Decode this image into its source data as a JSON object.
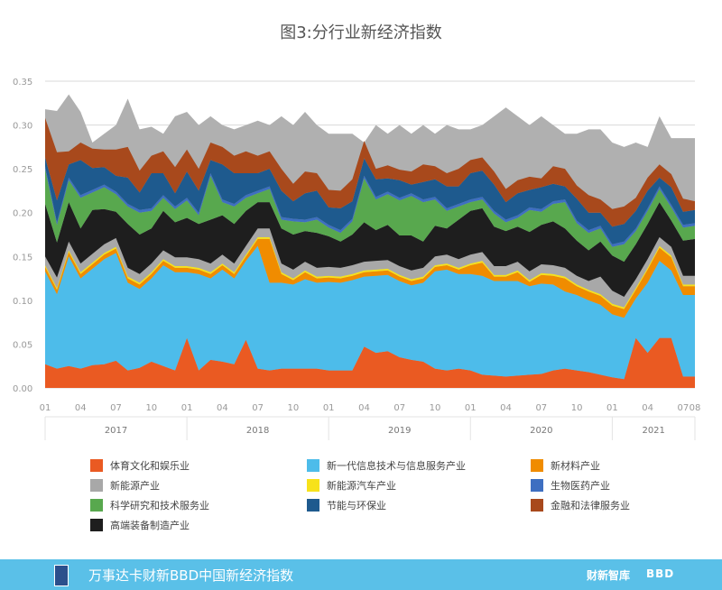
{
  "chart_data": {
    "type": "area",
    "stacked": true,
    "title": "图3:分行业新经济指数",
    "xlabel": "",
    "ylabel": "",
    "ylim": [
      0,
      0.35
    ],
    "yticks": [
      "0.00",
      "0.05",
      "0.10",
      "0.15",
      "0.20",
      "0.25",
      "0.30",
      "0.35"
    ],
    "x_month_labels": [
      "01",
      "04",
      "07",
      "10",
      "01",
      "04",
      "07",
      "10",
      "01",
      "04",
      "07",
      "10",
      "01",
      "04",
      "07",
      "10",
      "01",
      "04",
      "07",
      "08"
    ],
    "x_year_labels": [
      "2017",
      "2018",
      "2019",
      "2020",
      "2021"
    ],
    "grid": true,
    "legend_position": "bottom",
    "x": [
      "2017-01",
      "2017-02",
      "2017-03",
      "2017-04",
      "2017-05",
      "2017-06",
      "2017-07",
      "2017-08",
      "2017-09",
      "2017-10",
      "2017-11",
      "2017-12",
      "2018-01",
      "2018-02",
      "2018-03",
      "2018-04",
      "2018-05",
      "2018-06",
      "2018-07",
      "2018-08",
      "2018-09",
      "2018-10",
      "2018-11",
      "2018-12",
      "2019-01",
      "2019-02",
      "2019-03",
      "2019-04",
      "2019-05",
      "2019-06",
      "2019-07",
      "2019-08",
      "2019-09",
      "2019-10",
      "2019-11",
      "2019-12",
      "2020-01",
      "2020-02",
      "2020-03",
      "2020-04",
      "2020-05",
      "2020-06",
      "2020-07",
      "2020-08",
      "2020-09",
      "2020-10",
      "2020-11",
      "2020-12",
      "2021-01",
      "2021-02",
      "2021-03",
      "2021-04",
      "2021-05",
      "2021-06",
      "2021-07",
      "2021-08"
    ],
    "series": [
      {
        "name": "体育文化和娱乐业",
        "color": "#ea5a22",
        "values": [
          0.027,
          0.022,
          0.025,
          0.022,
          0.026,
          0.027,
          0.031,
          0.02,
          0.023,
          0.03,
          0.025,
          0.02,
          0.057,
          0.02,
          0.032,
          0.03,
          0.027,
          0.055,
          0.022,
          0.02,
          0.022,
          0.022,
          0.022,
          0.022,
          0.02,
          0.02,
          0.02,
          0.047,
          0.04,
          0.042,
          0.035,
          0.032,
          0.03,
          0.022,
          0.02,
          0.022,
          0.02,
          0.015,
          0.014,
          0.013,
          0.014,
          0.015,
          0.016,
          0.02,
          0.022,
          0.02,
          0.018,
          0.015,
          0.012,
          0.01,
          0.057,
          0.04,
          0.057,
          0.057,
          0.013,
          0.013
        ]
      },
      {
        "name": "新一代信息技术与信息服务产业",
        "color": "#4dbcea",
        "values": [
          0.106,
          0.085,
          0.125,
          0.103,
          0.11,
          0.12,
          0.123,
          0.1,
          0.09,
          0.095,
          0.115,
          0.112,
          0.075,
          0.11,
          0.093,
          0.105,
          0.098,
          0.09,
          0.14,
          0.1,
          0.098,
          0.096,
          0.102,
          0.098,
          0.101,
          0.1,
          0.103,
          0.08,
          0.088,
          0.087,
          0.087,
          0.085,
          0.09,
          0.111,
          0.115,
          0.108,
          0.11,
          0.113,
          0.108,
          0.109,
          0.108,
          0.101,
          0.103,
          0.098,
          0.088,
          0.086,
          0.082,
          0.08,
          0.072,
          0.07,
          0.045,
          0.08,
          0.088,
          0.077,
          0.093,
          0.093
        ]
      },
      {
        "name": "新材料产业",
        "color": "#f08c00",
        "values": [
          0.005,
          0.005,
          0.005,
          0.005,
          0.005,
          0.005,
          0.005,
          0.005,
          0.005,
          0.005,
          0.005,
          0.005,
          0.005,
          0.005,
          0.005,
          0.005,
          0.005,
          0.005,
          0.008,
          0.05,
          0.01,
          0.005,
          0.008,
          0.005,
          0.005,
          0.005,
          0.005,
          0.005,
          0.005,
          0.005,
          0.005,
          0.005,
          0.005,
          0.005,
          0.005,
          0.005,
          0.01,
          0.015,
          0.005,
          0.005,
          0.01,
          0.005,
          0.01,
          0.01,
          0.015,
          0.01,
          0.01,
          0.01,
          0.01,
          0.01,
          0.01,
          0.015,
          0.015,
          0.015,
          0.01,
          0.01
        ]
      },
      {
        "name": "新能源汽车产业",
        "color": "#f7e21b",
        "values": [
          0.002,
          0.002,
          0.002,
          0.002,
          0.002,
          0.002,
          0.002,
          0.002,
          0.002,
          0.002,
          0.002,
          0.002,
          0.002,
          0.002,
          0.002,
          0.002,
          0.002,
          0.002,
          0.002,
          0.002,
          0.002,
          0.002,
          0.002,
          0.002,
          0.002,
          0.002,
          0.002,
          0.002,
          0.002,
          0.002,
          0.002,
          0.002,
          0.002,
          0.002,
          0.002,
          0.002,
          0.002,
          0.002,
          0.002,
          0.002,
          0.002,
          0.002,
          0.002,
          0.002,
          0.002,
          0.002,
          0.002,
          0.002,
          0.002,
          0.002,
          0.002,
          0.002,
          0.002,
          0.002,
          0.002,
          0.002
        ]
      },
      {
        "name": "新能源产业",
        "color": "#a8a8a8",
        "values": [
          0.01,
          0.012,
          0.01,
          0.01,
          0.01,
          0.01,
          0.01,
          0.01,
          0.01,
          0.01,
          0.01,
          0.01,
          0.01,
          0.01,
          0.01,
          0.01,
          0.01,
          0.01,
          0.01,
          0.01,
          0.01,
          0.01,
          0.01,
          0.01,
          0.01,
          0.01,
          0.01,
          0.01,
          0.01,
          0.01,
          0.01,
          0.01,
          0.01,
          0.01,
          0.01,
          0.01,
          0.01,
          0.01,
          0.01,
          0.01,
          0.01,
          0.01,
          0.01,
          0.01,
          0.01,
          0.01,
          0.01,
          0.02,
          0.015,
          0.012,
          0.01,
          0.01,
          0.01,
          0.01,
          0.01,
          0.01
        ]
      },
      {
        "name": "高端装备制造产业",
        "color": "#1e1e1e",
        "values": [
          0.06,
          0.04,
          0.045,
          0.04,
          0.05,
          0.04,
          0.03,
          0.05,
          0.045,
          0.04,
          0.045,
          0.04,
          0.045,
          0.04,
          0.05,
          0.045,
          0.045,
          0.04,
          0.03,
          0.03,
          0.04,
          0.04,
          0.035,
          0.04,
          0.035,
          0.03,
          0.035,
          0.045,
          0.035,
          0.04,
          0.035,
          0.04,
          0.03,
          0.035,
          0.03,
          0.045,
          0.05,
          0.05,
          0.045,
          0.04,
          0.04,
          0.045,
          0.045,
          0.05,
          0.045,
          0.04,
          0.035,
          0.04,
          0.04,
          0.04,
          0.04,
          0.04,
          0.04,
          0.03,
          0.04,
          0.042
        ]
      },
      {
        "name": "科学研究和技术服务业",
        "color": "#58a84e",
        "values": [
          0.04,
          0.02,
          0.025,
          0.035,
          0.02,
          0.025,
          0.02,
          0.02,
          0.025,
          0.02,
          0.015,
          0.015,
          0.02,
          0.01,
          0.05,
          0.015,
          0.02,
          0.015,
          0.01,
          0.015,
          0.01,
          0.015,
          0.01,
          0.015,
          0.01,
          0.01,
          0.015,
          0.05,
          0.035,
          0.035,
          0.04,
          0.045,
          0.045,
          0.03,
          0.02,
          0.015,
          0.01,
          0.01,
          0.015,
          0.01,
          0.01,
          0.025,
          0.015,
          0.02,
          0.03,
          0.02,
          0.02,
          0.015,
          0.01,
          0.02,
          0.015,
          0.015,
          0.015,
          0.015,
          0.015,
          0.015
        ]
      },
      {
        "name": "生物医药产业",
        "color": "#3e6fc1",
        "values": [
          0.003,
          0.003,
          0.003,
          0.003,
          0.003,
          0.003,
          0.003,
          0.003,
          0.003,
          0.003,
          0.003,
          0.003,
          0.003,
          0.003,
          0.003,
          0.003,
          0.003,
          0.003,
          0.003,
          0.003,
          0.003,
          0.003,
          0.003,
          0.003,
          0.003,
          0.003,
          0.003,
          0.003,
          0.003,
          0.003,
          0.003,
          0.003,
          0.003,
          0.003,
          0.003,
          0.003,
          0.003,
          0.003,
          0.003,
          0.003,
          0.003,
          0.003,
          0.003,
          0.003,
          0.003,
          0.003,
          0.003,
          0.003,
          0.003,
          0.003,
          0.003,
          0.003,
          0.003,
          0.003,
          0.003,
          0.003
        ]
      },
      {
        "name": "节能与环保业",
        "color": "#1e5a8e",
        "values": [
          0.01,
          0.025,
          0.015,
          0.04,
          0.025,
          0.02,
          0.018,
          0.03,
          0.02,
          0.04,
          0.025,
          0.015,
          0.03,
          0.025,
          0.015,
          0.04,
          0.035,
          0.025,
          0.02,
          0.02,
          0.03,
          0.02,
          0.03,
          0.03,
          0.02,
          0.025,
          0.02,
          0.02,
          0.02,
          0.015,
          0.02,
          0.01,
          0.02,
          0.02,
          0.025,
          0.02,
          0.03,
          0.03,
          0.03,
          0.02,
          0.025,
          0.02,
          0.025,
          0.02,
          0.015,
          0.025,
          0.02,
          0.015,
          0.02,
          0.02,
          0.02,
          0.02,
          0.01,
          0.02,
          0.015,
          0.015
        ]
      },
      {
        "name": "金融和法律服务业",
        "color": "#a8491c",
        "values": [
          0.045,
          0.055,
          0.015,
          0.02,
          0.022,
          0.02,
          0.03,
          0.035,
          0.025,
          0.02,
          0.025,
          0.03,
          0.025,
          0.025,
          0.02,
          0.02,
          0.02,
          0.025,
          0.02,
          0.02,
          0.025,
          0.02,
          0.025,
          0.02,
          0.02,
          0.02,
          0.025,
          0.02,
          0.012,
          0.015,
          0.012,
          0.015,
          0.02,
          0.015,
          0.015,
          0.02,
          0.015,
          0.015,
          0.015,
          0.015,
          0.015,
          0.015,
          0.01,
          0.02,
          0.02,
          0.015,
          0.02,
          0.015,
          0.02,
          0.02,
          0.015,
          0.015,
          0.015,
          0.015,
          0.015,
          0.01
        ]
      }
    ],
    "legend_entries": [
      {
        "name": "体育文化和娱乐业",
        "color": "#ea5a22"
      },
      {
        "name": "新一代信息技术与信息服务产业",
        "color": "#4dbcea"
      },
      {
        "name": "新材料产业",
        "color": "#f08c00"
      },
      {
        "name": "新能源产业",
        "color": "#a8a8a8"
      },
      {
        "name": "新能源汽车产业",
        "color": "#f7e21b"
      },
      {
        "name": "生物医药产业",
        "color": "#3e6fc1"
      },
      {
        "name": "科学研究和技术服务业",
        "color": "#58a84e"
      },
      {
        "name": "节能与环保业",
        "color": "#1e5a8e"
      },
      {
        "name": "金融和法律服务业",
        "color": "#a8491c"
      },
      {
        "name": "高端装备制造产业",
        "color": "#1e1e1e"
      }
    ],
    "grey_total": [
      0.318,
      0.316,
      0.335,
      0.315,
      0.28,
      0.29,
      0.3,
      0.33,
      0.295,
      0.298,
      0.29,
      0.31,
      0.315,
      0.3,
      0.31,
      0.3,
      0.295,
      0.3,
      0.305,
      0.3,
      0.31,
      0.3,
      0.315,
      0.3,
      0.29,
      0.29,
      0.29,
      0.28,
      0.3,
      0.29,
      0.3,
      0.29,
      0.3,
      0.29,
      0.3,
      0.295,
      0.295,
      0.3,
      0.31,
      0.32,
      0.31,
      0.3,
      0.31,
      0.3,
      0.29,
      0.29,
      0.295,
      0.295,
      0.28,
      0.275,
      0.28,
      0.275,
      0.31,
      0.285,
      0.285,
      0.285
    ]
  },
  "footer": {
    "text": "万事达卡财新BBD中国新经济指数",
    "brand1": "财新智库",
    "brand2": "BBD"
  }
}
